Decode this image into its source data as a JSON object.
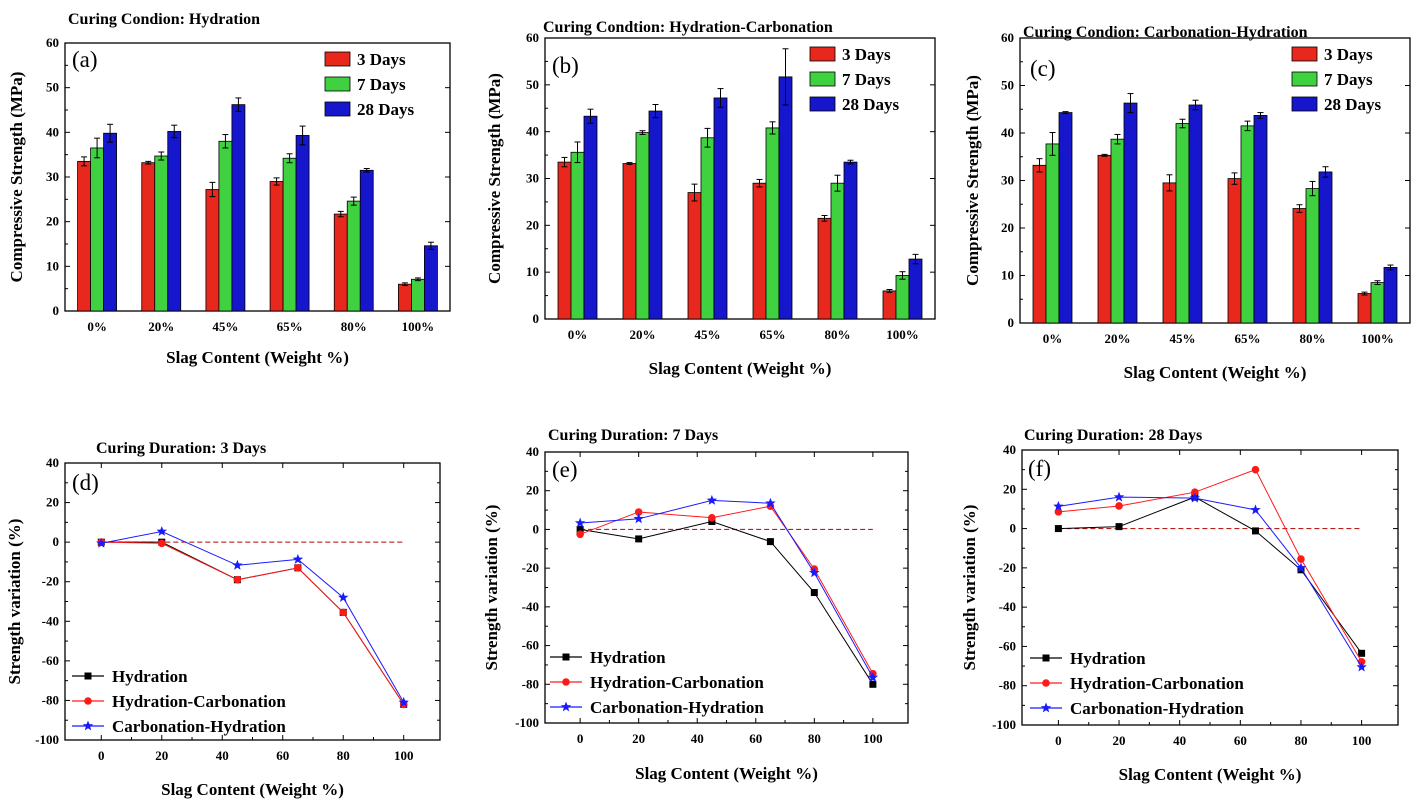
{
  "figure": {
    "colors": {
      "3 Days": "#e8281d",
      "7 Days": "#3fd13f",
      "28 Days": "#1616cc",
      "Hydration": "#000000",
      "Hydration-Carbonation": "#ff1a1a",
      "Carbonation-Hydration": "#1a1aff",
      "reference_line": "#b00000"
    }
  },
  "chart_data": [
    {
      "type": "bar",
      "letter": "(a)",
      "title": "Curing Condion: Hydration",
      "xlabel": "Slag Content (Weight %)",
      "ylabel": "Compressive Strength (MPa)",
      "ylim": [
        0,
        60
      ],
      "yticks": [
        0,
        10,
        20,
        30,
        40,
        50,
        60
      ],
      "categories": [
        "0%",
        "20%",
        "45%",
        "65%",
        "80%",
        "100%"
      ],
      "legend_position": "top-right",
      "series": [
        {
          "name": "3 Days",
          "values": [
            33.5,
            33.2,
            27.2,
            29.0,
            21.7,
            6.0
          ],
          "errors": [
            1.0,
            0.3,
            1.6,
            0.8,
            0.6,
            0.3
          ]
        },
        {
          "name": "7 Days",
          "values": [
            36.5,
            34.7,
            38.0,
            34.2,
            24.6,
            7.1
          ],
          "errors": [
            2.2,
            0.9,
            1.5,
            1.0,
            0.9,
            0.3
          ]
        },
        {
          "name": "28 Days",
          "values": [
            39.8,
            40.2,
            46.2,
            39.3,
            31.5,
            14.6
          ],
          "errors": [
            2.0,
            1.4,
            1.5,
            2.1,
            0.4,
            0.8
          ]
        }
      ]
    },
    {
      "type": "bar",
      "letter": "(b)",
      "title": "Curing Condtion: Hydration-Carbonation",
      "xlabel": "Slag Content (Weight %)",
      "ylabel": "Compressive Strength (MPa)",
      "ylim": [
        0,
        60
      ],
      "yticks": [
        0,
        10,
        20,
        30,
        40,
        50,
        60
      ],
      "categories": [
        "0%",
        "20%",
        "45%",
        "65%",
        "80%",
        "100%"
      ],
      "legend_position": "top-right",
      "series": [
        {
          "name": "3 Days",
          "values": [
            33.5,
            33.2,
            27.0,
            29.0,
            21.5,
            6.0
          ],
          "errors": [
            1.0,
            0.2,
            1.8,
            0.8,
            0.6,
            0.3
          ]
        },
        {
          "name": "7 Days",
          "values": [
            35.6,
            39.8,
            38.7,
            40.8,
            29.0,
            9.3
          ],
          "errors": [
            2.2,
            0.4,
            2.0,
            1.3,
            1.7,
            0.8
          ]
        },
        {
          "name": "28 Days",
          "values": [
            43.3,
            44.4,
            47.2,
            51.7,
            33.5,
            12.8
          ],
          "errors": [
            1.5,
            1.4,
            2.0,
            6.0,
            0.4,
            1.0
          ]
        }
      ]
    },
    {
      "type": "bar",
      "letter": "(c)",
      "title": "Curing Condion: Carbonation-Hydration",
      "xlabel": "Slag Content (Weight %)",
      "ylabel": "Compressive Strength (MPa)",
      "ylim": [
        0,
        60
      ],
      "yticks": [
        0,
        10,
        20,
        30,
        40,
        50,
        60
      ],
      "categories": [
        "0%",
        "20%",
        "45%",
        "65%",
        "80%",
        "100%"
      ],
      "legend_position": "top-right",
      "series": [
        {
          "name": "3 Days",
          "values": [
            33.2,
            35.3,
            29.5,
            30.4,
            24.1,
            6.2
          ],
          "errors": [
            1.4,
            0.2,
            1.7,
            1.2,
            0.8,
            0.3
          ]
        },
        {
          "name": "7 Days",
          "values": [
            37.7,
            38.7,
            42.0,
            41.5,
            28.3,
            8.5
          ],
          "errors": [
            2.4,
            1.0,
            0.9,
            1.0,
            1.5,
            0.4
          ]
        },
        {
          "name": "28 Days",
          "values": [
            44.3,
            46.3,
            45.9,
            43.7,
            31.8,
            11.7
          ],
          "errors": [
            0.2,
            2.0,
            1.0,
            0.6,
            1.1,
            0.5
          ]
        }
      ]
    },
    {
      "type": "line",
      "letter": "(d)",
      "title": "Curing Duration: 3 Days",
      "xlabel": "Slag Content (Weight %)",
      "ylabel": "Strength variation (%)",
      "xlim": [
        -12,
        112
      ],
      "xticks": [
        0,
        20,
        40,
        60,
        80,
        100
      ],
      "ylim": [
        -100,
        40
      ],
      "yticks": [
        -100,
        -80,
        -60,
        -40,
        -20,
        0,
        20,
        40
      ],
      "reference_line": 0,
      "legend_position": "bottom-left",
      "x": [
        0,
        20,
        45,
        65,
        80,
        100
      ],
      "series": [
        {
          "name": "Hydration",
          "marker": "square",
          "values": [
            0,
            0,
            -19,
            -13,
            -35.5,
            -82
          ]
        },
        {
          "name": "Hydration-Carbonation",
          "marker": "circle",
          "values": [
            0,
            -0.6,
            -19,
            -13,
            -35.5,
            -82
          ]
        },
        {
          "name": "Carbonation-Hydration",
          "marker": "star",
          "values": [
            -0.6,
            5.4,
            -11.7,
            -8.7,
            -28,
            -81
          ]
        }
      ]
    },
    {
      "type": "line",
      "letter": "(e)",
      "title": "Curing Duration: 7 Days",
      "xlabel": "Slag Content (Weight %)",
      "ylabel": "Strength variation (%)",
      "xlim": [
        -12,
        112
      ],
      "xticks": [
        0,
        20,
        40,
        60,
        80,
        100
      ],
      "ylim": [
        -100,
        40
      ],
      "yticks": [
        -100,
        -80,
        -60,
        -40,
        -20,
        0,
        20,
        40
      ],
      "reference_line": 0,
      "legend_position": "bottom-left",
      "x": [
        0,
        20,
        45,
        65,
        80,
        100
      ],
      "series": [
        {
          "name": "Hydration",
          "marker": "square",
          "values": [
            0,
            -4.9,
            4.1,
            -6.3,
            -32.6,
            -80
          ]
        },
        {
          "name": "Hydration-Carbonation",
          "marker": "circle",
          "values": [
            -2.5,
            9.0,
            6.0,
            12.0,
            -20.5,
            -74.5
          ]
        },
        {
          "name": "Carbonation-Hydration",
          "marker": "star",
          "values": [
            3.3,
            5.5,
            15.0,
            13.5,
            -22.4,
            -76.5
          ]
        }
      ]
    },
    {
      "type": "line",
      "letter": "(f)",
      "title": "Curing Duration: 28 Days",
      "xlabel": "Slag Content (Weight %)",
      "ylabel": "Strength variation (%)",
      "xlim": [
        -12,
        112
      ],
      "xticks": [
        0,
        20,
        40,
        60,
        80,
        100
      ],
      "ylim": [
        -100,
        40
      ],
      "yticks": [
        -100,
        -80,
        -60,
        -40,
        -20,
        0,
        20,
        40
      ],
      "reference_line": 0,
      "legend_position": "bottom-left",
      "x": [
        0,
        20,
        45,
        65,
        80,
        100
      ],
      "series": [
        {
          "name": "Hydration",
          "marker": "square",
          "values": [
            0,
            1.0,
            16.0,
            -1.2,
            -21.0,
            -63.5
          ]
        },
        {
          "name": "Hydration-Carbonation",
          "marker": "circle",
          "values": [
            8.5,
            11.5,
            18.5,
            30.0,
            -15.5,
            -67.8
          ]
        },
        {
          "name": "Carbonation-Hydration",
          "marker": "star",
          "values": [
            11.3,
            16.0,
            15.5,
            9.5,
            -20.0,
            -70.5
          ]
        }
      ]
    }
  ]
}
